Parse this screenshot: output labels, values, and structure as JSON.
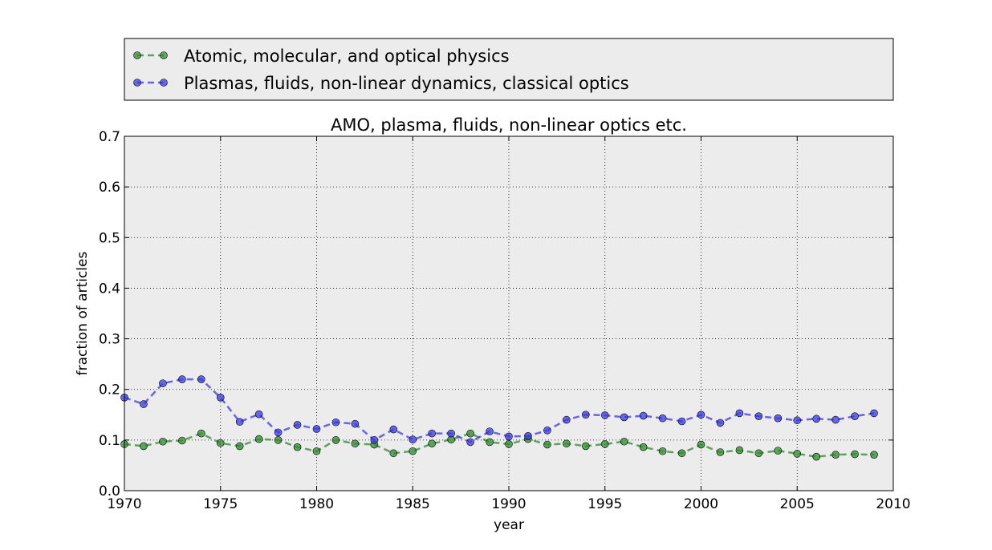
{
  "chart_data": {
    "type": "line",
    "title": "AMO, plasma, fluids, non-linear optics etc.",
    "xlabel": "year",
    "ylabel": "fraction of articles",
    "xlim": [
      1970,
      2010
    ],
    "ylim": [
      0.0,
      0.7
    ],
    "xticks": [
      "1970",
      "1975",
      "1980",
      "1985",
      "1990",
      "1995",
      "2000",
      "2005",
      "2010"
    ],
    "yticks": [
      "0.0",
      "0.1",
      "0.2",
      "0.3",
      "0.4",
      "0.5",
      "0.6",
      "0.7"
    ],
    "grid": true,
    "legend_position": "above plot",
    "plot_background": "#ececec",
    "series": [
      {
        "name": "Atomic, molecular, and optical physics",
        "color": "#2e8b2e",
        "x": [
          1970,
          1971,
          1972,
          1973,
          1974,
          1975,
          1976,
          1977,
          1978,
          1979,
          1980,
          1981,
          1982,
          1983,
          1984,
          1985,
          1986,
          1987,
          1988,
          1989,
          1990,
          1991,
          1992,
          1993,
          1994,
          1995,
          1996,
          1997,
          1998,
          1999,
          2000,
          2001,
          2002,
          2003,
          2004,
          2005,
          2006,
          2007,
          2008,
          2009
        ],
        "values": [
          0.092,
          0.088,
          0.097,
          0.099,
          0.113,
          0.094,
          0.088,
          0.102,
          0.1,
          0.086,
          0.078,
          0.1,
          0.093,
          0.091,
          0.074,
          0.078,
          0.093,
          0.101,
          0.113,
          0.096,
          0.092,
          0.102,
          0.091,
          0.093,
          0.088,
          0.092,
          0.097,
          0.086,
          0.078,
          0.074,
          0.091,
          0.076,
          0.08,
          0.074,
          0.079,
          0.073,
          0.067,
          0.071,
          0.072,
          0.071
        ]
      },
      {
        "name": "Plasmas, fluids, non-linear dynamics, classical optics",
        "color": "#3a3ae6",
        "x": [
          1970,
          1971,
          1972,
          1973,
          1974,
          1975,
          1976,
          1977,
          1978,
          1979,
          1980,
          1981,
          1982,
          1983,
          1984,
          1985,
          1986,
          1987,
          1988,
          1989,
          1990,
          1991,
          1992,
          1993,
          1994,
          1995,
          1996,
          1997,
          1998,
          1999,
          2000,
          2001,
          2002,
          2003,
          2004,
          2005,
          2006,
          2007,
          2008,
          2009
        ],
        "values": [
          0.184,
          0.171,
          0.212,
          0.22,
          0.22,
          0.184,
          0.136,
          0.151,
          0.115,
          0.13,
          0.122,
          0.135,
          0.132,
          0.1,
          0.121,
          0.101,
          0.113,
          0.113,
          0.096,
          0.117,
          0.107,
          0.108,
          0.119,
          0.14,
          0.15,
          0.149,
          0.145,
          0.148,
          0.143,
          0.137,
          0.15,
          0.134,
          0.153,
          0.147,
          0.143,
          0.139,
          0.142,
          0.14,
          0.147,
          0.153
        ]
      }
    ]
  }
}
